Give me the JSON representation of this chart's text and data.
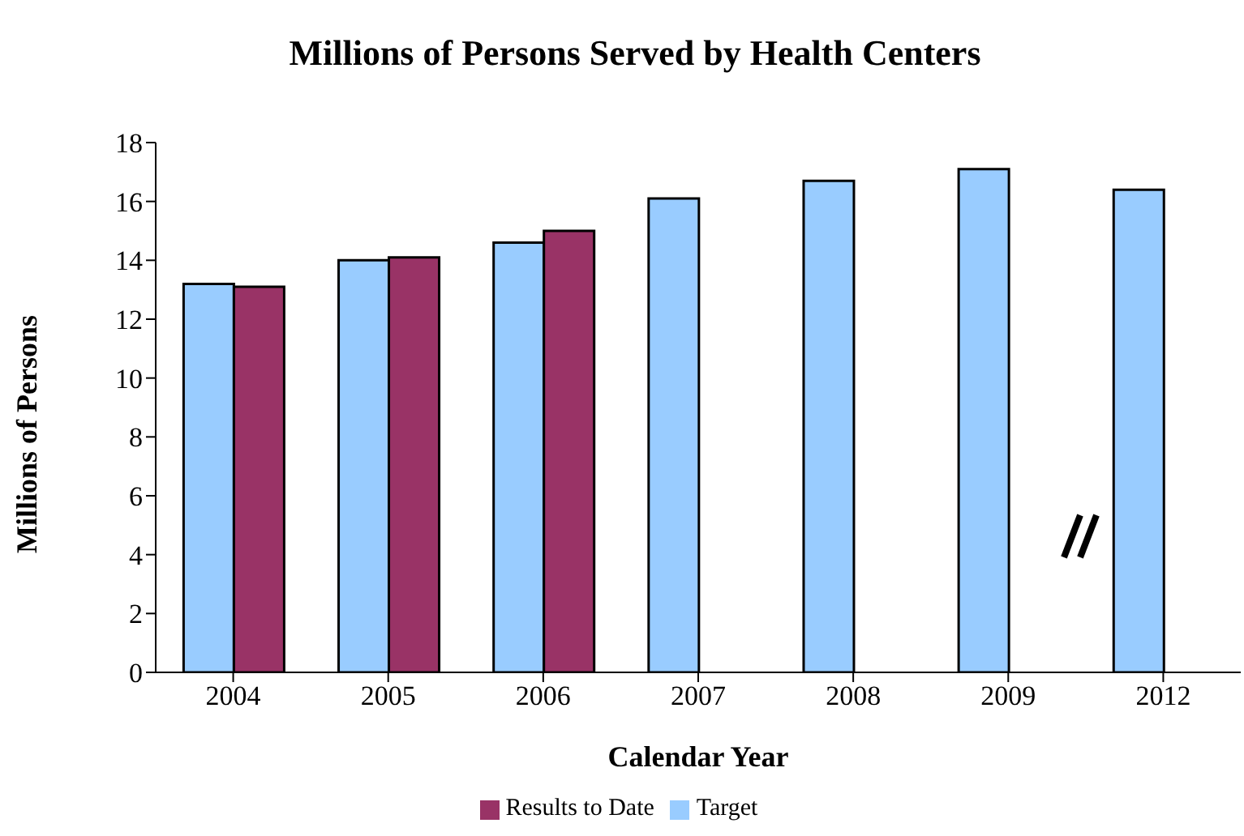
{
  "chart_data": {
    "type": "bar",
    "title": "Millions of Persons Served by Health Centers",
    "xlabel": "Calendar Year",
    "ylabel": "Millions of Persons",
    "categories": [
      "2004",
      "2005",
      "2006",
      "2007",
      "2008",
      "2009",
      "2012"
    ],
    "series": [
      {
        "name": "Target",
        "color": "#99ccff",
        "values": [
          13.2,
          14.0,
          14.6,
          16.1,
          16.7,
          17.1,
          16.4
        ]
      },
      {
        "name": "Results to Date",
        "color": "#993366",
        "values": [
          13.1,
          14.1,
          15.0,
          null,
          null,
          null,
          null
        ]
      }
    ],
    "ylim": [
      0,
      18
    ],
    "yticks": [
      0,
      2,
      4,
      6,
      8,
      10,
      12,
      14,
      16,
      18
    ],
    "grid": false,
    "legend": "bottom"
  }
}
